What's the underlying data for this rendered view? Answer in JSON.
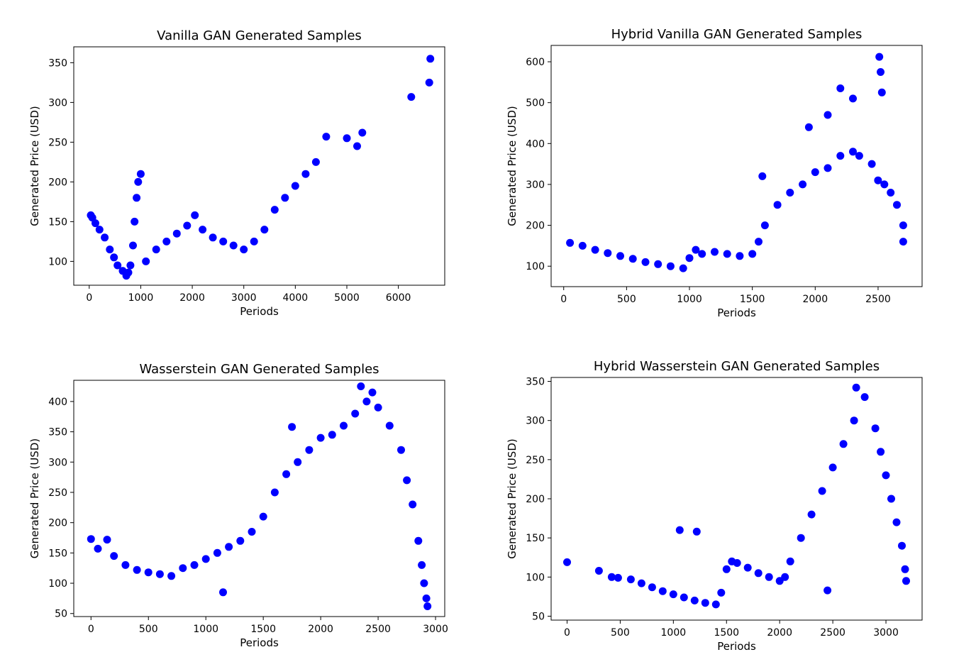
{
  "figure": {
    "marker_color": "#0000ff",
    "charts": [
      {
        "type": "scatter",
        "title": "Vanilla GAN Generated Samples",
        "xlabel": "Periods",
        "ylabel": "Generated Price (USD)",
        "xlim": [
          -300,
          6900
        ],
        "ylim": [
          70,
          370
        ],
        "xticks": [
          "0",
          "1000",
          "2000",
          "3000",
          "4000",
          "5000",
          "6000"
        ],
        "xtick_values": [
          0,
          1000,
          2000,
          3000,
          4000,
          5000,
          6000
        ],
        "yticks": [
          "100",
          "150",
          "200",
          "250",
          "300",
          "350"
        ],
        "ytick_values": [
          100,
          150,
          200,
          250,
          300,
          350
        ],
        "points": [
          [
            30,
            158
          ],
          [
            60,
            155
          ],
          [
            120,
            148
          ],
          [
            200,
            140
          ],
          [
            300,
            130
          ],
          [
            400,
            115
          ],
          [
            480,
            105
          ],
          [
            550,
            95
          ],
          [
            650,
            88
          ],
          [
            720,
            82
          ],
          [
            760,
            86
          ],
          [
            800,
            95
          ],
          [
            850,
            120
          ],
          [
            880,
            150
          ],
          [
            920,
            180
          ],
          [
            950,
            200
          ],
          [
            1000,
            210
          ],
          [
            1100,
            100
          ],
          [
            1300,
            115
          ],
          [
            1500,
            125
          ],
          [
            1700,
            135
          ],
          [
            1900,
            145
          ],
          [
            2050,
            158
          ],
          [
            2200,
            140
          ],
          [
            2400,
            130
          ],
          [
            2600,
            125
          ],
          [
            2800,
            120
          ],
          [
            3000,
            115
          ],
          [
            3200,
            125
          ],
          [
            3400,
            140
          ],
          [
            3600,
            165
          ],
          [
            3800,
            180
          ],
          [
            4000,
            195
          ],
          [
            4200,
            210
          ],
          [
            4400,
            225
          ],
          [
            4600,
            257
          ],
          [
            5000,
            255
          ],
          [
            5200,
            245
          ],
          [
            5300,
            262
          ],
          [
            6250,
            307
          ],
          [
            6600,
            325
          ],
          [
            6620,
            355
          ]
        ]
      },
      {
        "type": "scatter",
        "title": "Hybrid Vanilla  GAN Generated Samples",
        "xlabel": "Periods",
        "ylabel": "Generated Price (USD)",
        "xlim": [
          -100,
          2850
        ],
        "ylim": [
          50,
          640
        ],
        "xticks": [
          "0",
          "500",
          "1000",
          "1500",
          "2000",
          "2500"
        ],
        "xtick_values": [
          0,
          500,
          1000,
          1500,
          2000,
          2500
        ],
        "yticks": [
          "100",
          "200",
          "300",
          "400",
          "500",
          "600"
        ],
        "ytick_values": [
          100,
          200,
          300,
          400,
          500,
          600
        ],
        "points": [
          [
            50,
            157
          ],
          [
            150,
            150
          ],
          [
            250,
            140
          ],
          [
            350,
            132
          ],
          [
            450,
            125
          ],
          [
            550,
            118
          ],
          [
            650,
            110
          ],
          [
            750,
            105
          ],
          [
            850,
            100
          ],
          [
            950,
            95
          ],
          [
            1000,
            120
          ],
          [
            1050,
            140
          ],
          [
            1100,
            130
          ],
          [
            1200,
            135
          ],
          [
            1300,
            130
          ],
          [
            1400,
            125
          ],
          [
            1500,
            130
          ],
          [
            1550,
            160
          ],
          [
            1600,
            200
          ],
          [
            1700,
            250
          ],
          [
            1800,
            280
          ],
          [
            1900,
            300
          ],
          [
            2000,
            330
          ],
          [
            2100,
            340
          ],
          [
            2200,
            370
          ],
          [
            2300,
            380
          ],
          [
            2350,
            370
          ],
          [
            2450,
            350
          ],
          [
            2500,
            310
          ],
          [
            2550,
            300
          ],
          [
            2600,
            280
          ],
          [
            2650,
            250
          ],
          [
            2700,
            200
          ],
          [
            2700,
            160
          ],
          [
            2510,
            612
          ],
          [
            2520,
            575
          ],
          [
            2530,
            525
          ],
          [
            2200,
            535
          ],
          [
            2300,
            510
          ],
          [
            1950,
            440
          ],
          [
            2100,
            470
          ],
          [
            1580,
            320
          ]
        ]
      },
      {
        "type": "scatter",
        "title": "Wasserstein GAN Generated Samples",
        "xlabel": "Periods",
        "ylabel": "Generated Price (USD)",
        "xlim": [
          -150,
          3080
        ],
        "ylim": [
          45,
          435
        ],
        "xticks": [
          "0",
          "500",
          "1000",
          "1500",
          "2000",
          "2500",
          "3000"
        ],
        "xtick_values": [
          0,
          500,
          1000,
          1500,
          2000,
          2500,
          3000
        ],
        "yticks": [
          "50",
          "100",
          "150",
          "200",
          "250",
          "300",
          "350",
          "400"
        ],
        "ytick_values": [
          50,
          100,
          150,
          200,
          250,
          300,
          350,
          400
        ],
        "points": [
          [
            0,
            173
          ],
          [
            60,
            157
          ],
          [
            140,
            172
          ],
          [
            200,
            145
          ],
          [
            300,
            130
          ],
          [
            400,
            122
          ],
          [
            500,
            118
          ],
          [
            600,
            115
          ],
          [
            700,
            112
          ],
          [
            800,
            125
          ],
          [
            900,
            130
          ],
          [
            1000,
            140
          ],
          [
            1100,
            150
          ],
          [
            1200,
            160
          ],
          [
            1300,
            170
          ],
          [
            1400,
            185
          ],
          [
            1500,
            210
          ],
          [
            1600,
            250
          ],
          [
            1700,
            280
          ],
          [
            1800,
            300
          ],
          [
            1900,
            320
          ],
          [
            2000,
            340
          ],
          [
            2100,
            345
          ],
          [
            2200,
            360
          ],
          [
            2300,
            380
          ],
          [
            2400,
            400
          ],
          [
            2450,
            415
          ],
          [
            2500,
            390
          ],
          [
            2600,
            360
          ],
          [
            2700,
            320
          ],
          [
            2750,
            270
          ],
          [
            2800,
            230
          ],
          [
            2850,
            170
          ],
          [
            2880,
            130
          ],
          [
            2900,
            100
          ],
          [
            2920,
            75
          ],
          [
            2930,
            62
          ],
          [
            1150,
            85
          ],
          [
            1750,
            358
          ],
          [
            2350,
            425
          ]
        ]
      },
      {
        "type": "scatter",
        "title": "Hybrid Wasserstein GAN Generated Samples",
        "xlabel": "Periods",
        "ylabel": "Generated Price (USD)",
        "xlim": [
          -150,
          3340
        ],
        "ylim": [
          45,
          355
        ],
        "xticks": [
          "0",
          "500",
          "1000",
          "1500",
          "2000",
          "2500",
          "3000"
        ],
        "xtick_values": [
          0,
          500,
          1000,
          1500,
          2000,
          2500,
          3000
        ],
        "yticks": [
          "50",
          "100",
          "150",
          "200",
          "250",
          "300",
          "350"
        ],
        "ytick_values": [
          50,
          100,
          150,
          200,
          250,
          300,
          350
        ],
        "points": [
          [
            0,
            119
          ],
          [
            300,
            108
          ],
          [
            420,
            100
          ],
          [
            480,
            99
          ],
          [
            600,
            97
          ],
          [
            700,
            92
          ],
          [
            800,
            87
          ],
          [
            900,
            82
          ],
          [
            1000,
            78
          ],
          [
            1100,
            74
          ],
          [
            1200,
            70
          ],
          [
            1300,
            67
          ],
          [
            1400,
            65
          ],
          [
            1450,
            80
          ],
          [
            1500,
            110
          ],
          [
            1550,
            120
          ],
          [
            1600,
            118
          ],
          [
            1700,
            112
          ],
          [
            1800,
            105
          ],
          [
            1900,
            100
          ],
          [
            2000,
            95
          ],
          [
            2050,
            100
          ],
          [
            2100,
            120
          ],
          [
            2200,
            150
          ],
          [
            2300,
            180
          ],
          [
            2400,
            210
          ],
          [
            2500,
            240
          ],
          [
            2600,
            270
          ],
          [
            2700,
            300
          ],
          [
            2800,
            330
          ],
          [
            2900,
            290
          ],
          [
            2950,
            260
          ],
          [
            3000,
            230
          ],
          [
            3050,
            200
          ],
          [
            3100,
            170
          ],
          [
            3150,
            140
          ],
          [
            3180,
            110
          ],
          [
            3190,
            95
          ],
          [
            1060,
            160
          ],
          [
            1220,
            158
          ],
          [
            2450,
            83
          ],
          [
            2720,
            342
          ]
        ]
      }
    ]
  }
}
